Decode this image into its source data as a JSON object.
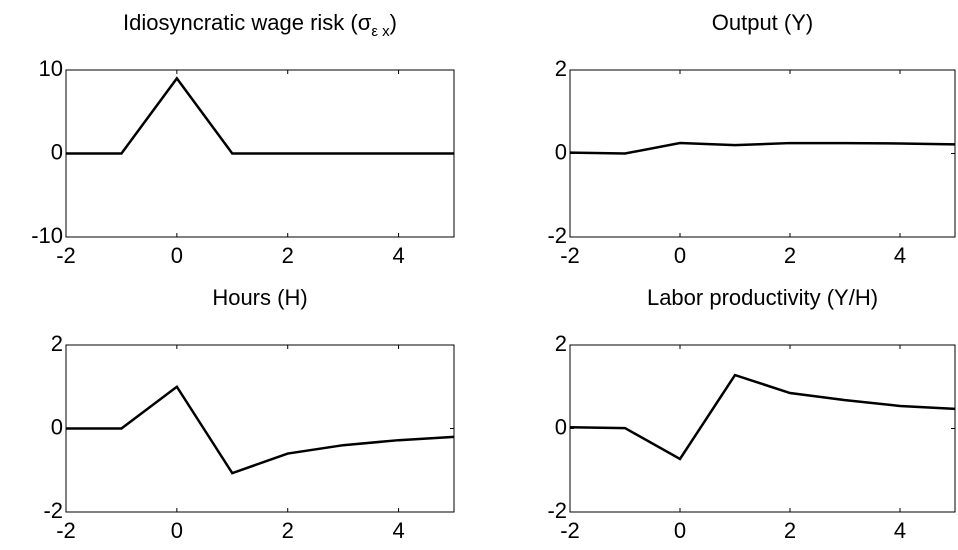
{
  "chart_data": [
    {
      "type": "line",
      "title": "Idiosyncratic wage risk (σ",
      "title_sub": "ε x",
      "title_end": ")",
      "x": [
        -2,
        -1,
        0,
        1,
        2,
        3,
        4,
        5
      ],
      "values": [
        0,
        0,
        9,
        0,
        0,
        0,
        0,
        0
      ],
      "color": "#000000",
      "xlim": [
        -2,
        5
      ],
      "xticks": [
        -2,
        0,
        2,
        4
      ],
      "ylim": [
        -10,
        10
      ],
      "yticks": [
        -10,
        0,
        10
      ]
    },
    {
      "type": "line",
      "title": "Output (Y)",
      "x": [
        -2,
        -1,
        0,
        1,
        2,
        3,
        4,
        5
      ],
      "values": [
        0.02,
        0,
        0.25,
        0.2,
        0.25,
        0.25,
        0.24,
        0.22
      ],
      "color": "#000000",
      "xlim": [
        -2,
        5
      ],
      "xticks": [
        -2,
        0,
        2,
        4
      ],
      "ylim": [
        -2,
        2
      ],
      "yticks": [
        -2,
        0,
        2
      ]
    },
    {
      "type": "line",
      "title": "Hours (H)",
      "x": [
        -2,
        -1,
        0,
        1,
        2,
        3,
        4,
        5
      ],
      "values": [
        0,
        0,
        1.0,
        -1.07,
        -0.6,
        -0.4,
        -0.28,
        -0.2
      ],
      "color": "#000000",
      "xlim": [
        -2,
        5
      ],
      "xticks": [
        -2,
        0,
        2,
        4
      ],
      "ylim": [
        -2,
        2
      ],
      "yticks": [
        -2,
        0,
        2
      ]
    },
    {
      "type": "line",
      "title": "Labor productivity (Y/H)",
      "x": [
        -2,
        -1,
        0,
        1,
        2,
        3,
        4,
        5
      ],
      "values": [
        0.03,
        0.01,
        -0.73,
        1.28,
        0.85,
        0.68,
        0.54,
        0.47
      ],
      "color": "#000000",
      "xlim": [
        -2,
        5
      ],
      "xticks": [
        -2,
        0,
        2,
        4
      ],
      "ylim": [
        -2,
        2
      ],
      "yticks": [
        -2,
        0,
        2
      ]
    }
  ]
}
